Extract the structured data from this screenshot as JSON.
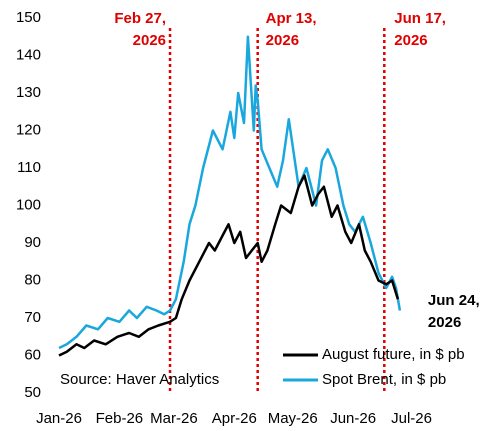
{
  "chart_data": {
    "type": "line",
    "source": "Source: Haver Analytics",
    "xlim": [
      0,
      211
    ],
    "xticks": [
      {
        "value": 0,
        "label": "Jan-26"
      },
      {
        "value": 31,
        "label": "Feb-26"
      },
      {
        "value": 59,
        "label": "Mar-26"
      },
      {
        "value": 90,
        "label": "Apr-26"
      },
      {
        "value": 120,
        "label": "May-26"
      },
      {
        "value": 151,
        "label": "Jun-26"
      },
      {
        "value": 181,
        "label": "Jul-26"
      }
    ],
    "ylim": [
      50,
      150
    ],
    "yticks": [
      50,
      60,
      70,
      80,
      90,
      100,
      110,
      120,
      130,
      140,
      150
    ],
    "legend": "lower right",
    "series": [
      {
        "name": "August future, in $ pb",
        "color": "#000000",
        "x": [
          0,
          4,
          9,
          13,
          18,
          24,
          30,
          36,
          41,
          46,
          51,
          57,
          60,
          63,
          67,
          72,
          77,
          80,
          84,
          87,
          90,
          93,
          96,
          99,
          102,
          104,
          107,
          111,
          114,
          119,
          123,
          126,
          130,
          133,
          136,
          140,
          143,
          147,
          150,
          154,
          157,
          160,
          164,
          168,
          171,
          174
        ],
        "values": [
          60,
          61,
          63,
          62,
          64,
          63,
          65,
          66,
          65,
          67,
          68,
          69,
          70,
          75,
          80,
          85,
          90,
          88,
          92,
          95,
          90,
          93,
          86,
          88,
          90,
          85,
          88,
          95,
          100,
          98,
          105,
          108,
          100,
          103,
          105,
          97,
          100,
          93,
          90,
          95,
          88,
          85,
          80,
          79,
          80,
          75
        ]
      },
      {
        "name": "Spot Brent, in $ pb",
        "color": "#1aa7dd",
        "x": [
          0,
          4,
          9,
          14,
          20,
          25,
          31,
          36,
          40,
          45,
          50,
          54,
          57,
          60,
          64,
          67,
          70,
          74,
          79,
          84,
          88,
          90,
          92,
          95,
          97,
          100,
          101,
          102,
          104,
          108,
          112,
          115,
          118,
          123,
          127,
          132,
          135,
          138,
          142,
          146,
          149,
          152,
          156,
          160,
          164,
          168,
          171,
          173,
          175
        ],
        "values": [
          62,
          63,
          65,
          68,
          67,
          70,
          69,
          72,
          70,
          73,
          72,
          71,
          72,
          75,
          85,
          95,
          100,
          110,
          120,
          115,
          125,
          118,
          130,
          122,
          145,
          120,
          132,
          128,
          115,
          110,
          105,
          112,
          123,
          105,
          110,
          100,
          112,
          115,
          110,
          100,
          95,
          93,
          97,
          90,
          82,
          78,
          81,
          78,
          72
        ]
      }
    ],
    "annotations": [
      {
        "lines": [
          "Feb 27,",
          "2026"
        ],
        "x": 57,
        "color": "#e00000",
        "vline": true
      },
      {
        "lines": [
          "Apr 13,",
          "2026"
        ],
        "x": 102,
        "color": "#e00000",
        "vline": true
      },
      {
        "lines": [
          "Jun 17,",
          "2026"
        ],
        "x": 167,
        "color": "#e00000",
        "vline": true
      },
      {
        "lines": [
          "Jun 24,",
          "2026"
        ],
        "x": 174,
        "color": "#000000",
        "vline": false
      }
    ]
  }
}
